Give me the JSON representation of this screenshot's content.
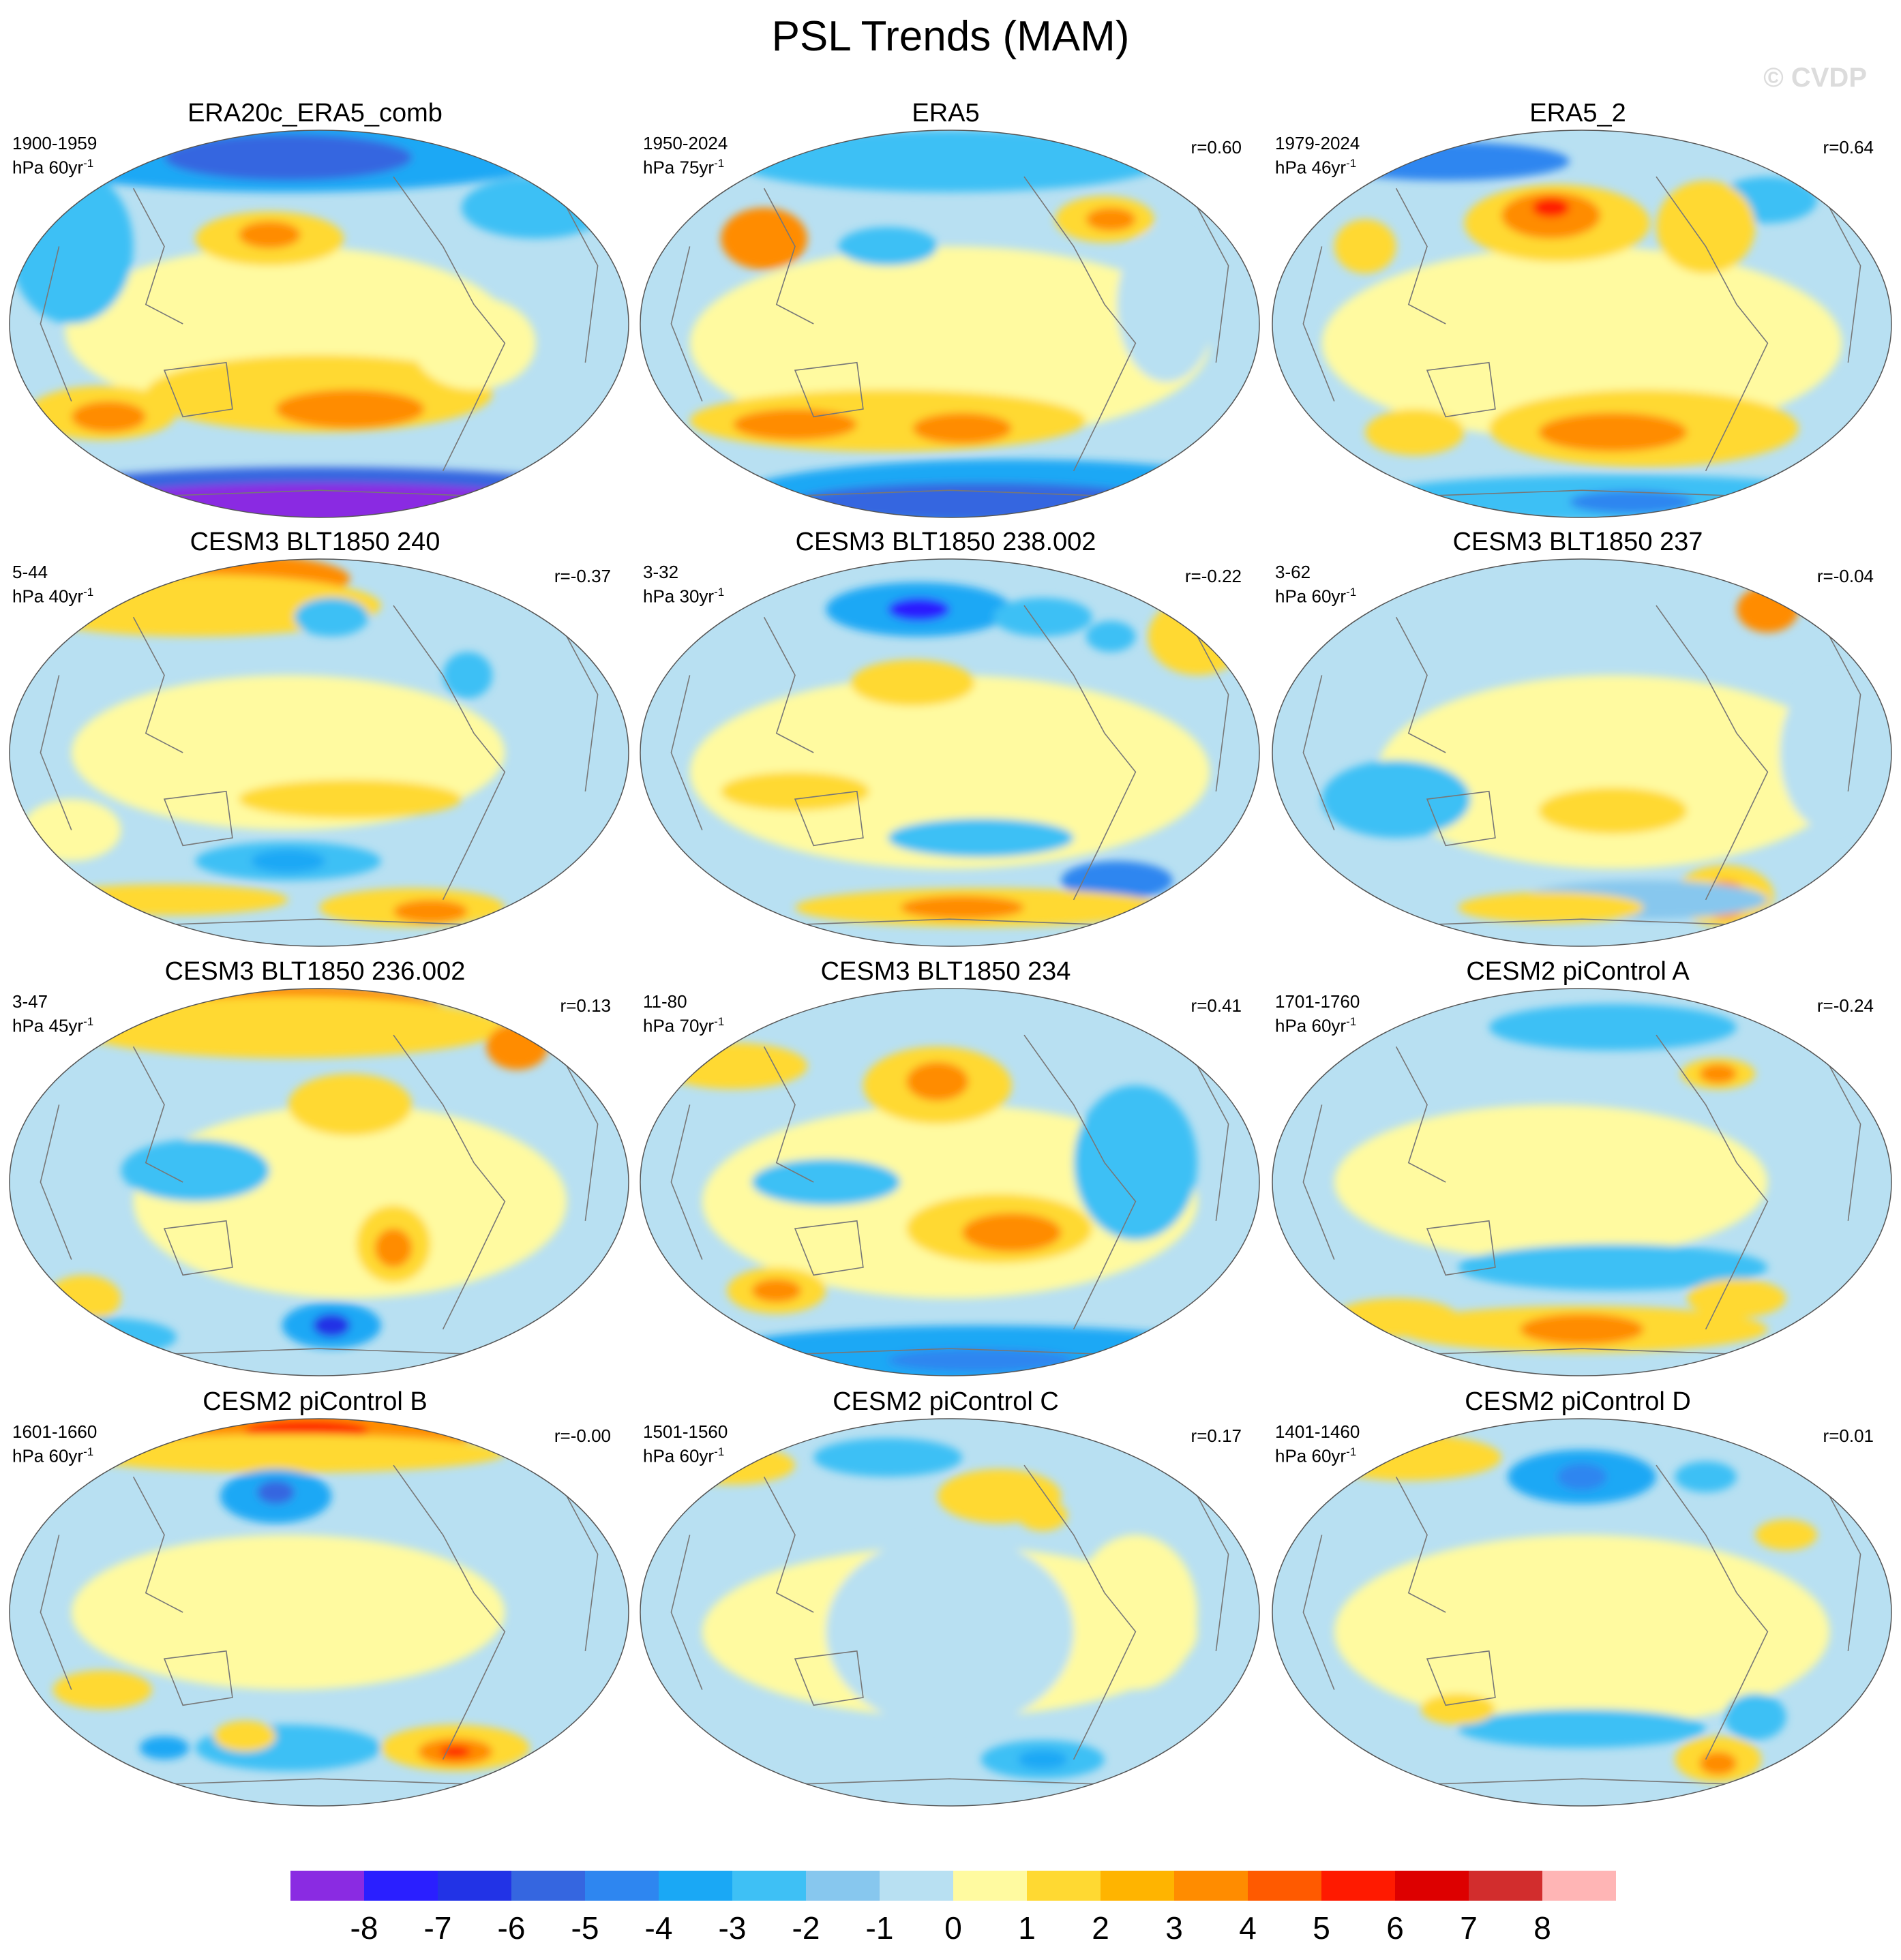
{
  "title": "PSL Trends (MAM)",
  "watermark": "© CVDP",
  "units_base": "hPa",
  "colorbar": {
    "colors": [
      "#8a2be2",
      "#2a1fff",
      "#2233e6",
      "#3566e0",
      "#2e86f0",
      "#1aa8f5",
      "#3ec0f5",
      "#87c7ee",
      "#b8e0f2",
      "#fffaa0",
      "#ffd932",
      "#ffb400",
      "#ff8c00",
      "#ff5a00",
      "#ff1a00",
      "#dd0000",
      "#d22d2d",
      "#ffb5b5"
    ],
    "labels": [
      "-8",
      "-7",
      "-6",
      "-5",
      "-4",
      "-3",
      "-2",
      "-1",
      "0",
      "1",
      "2",
      "3",
      "4",
      "5",
      "6",
      "7",
      "8"
    ]
  },
  "panels": [
    {
      "title": "ERA20c_ERA5_comb",
      "period": "1900-1959",
      "units": "hPa 60yr",
      "corr": ""
    },
    {
      "title": "ERA5",
      "period": "1950-2024",
      "units": "hPa 75yr",
      "corr": "r=0.60"
    },
    {
      "title": "ERA5_2",
      "period": "1979-2024",
      "units": "hPa 46yr",
      "corr": "r=0.64"
    },
    {
      "title": "CESM3 BLT1850 240",
      "period": "5-44",
      "units": "hPa 40yr",
      "corr": "r=-0.37"
    },
    {
      "title": "CESM3 BLT1850 238.002",
      "period": "3-32",
      "units": "hPa 30yr",
      "corr": "r=-0.22"
    },
    {
      "title": "CESM3 BLT1850 237",
      "period": "3-62",
      "units": "hPa 60yr",
      "corr": "r=-0.04"
    },
    {
      "title": "CESM3 BLT1850 236.002",
      "period": "3-47",
      "units": "hPa 45yr",
      "corr": "r=0.13"
    },
    {
      "title": "CESM3 BLT1850 234",
      "period": "11-80",
      "units": "hPa 70yr",
      "corr": "r=0.41"
    },
    {
      "title": "CESM2 piControl A",
      "period": "1701-1760",
      "units": "hPa 60yr",
      "corr": "r=-0.24"
    },
    {
      "title": "CESM2 piControl B",
      "period": "1601-1660",
      "units": "hPa 60yr",
      "corr": "r=-0.00"
    },
    {
      "title": "CESM2 piControl C",
      "period": "1501-1560",
      "units": "hPa 60yr",
      "corr": "r=0.17"
    },
    {
      "title": "CESM2 piControl D",
      "period": "1401-1460",
      "units": "hPa 60yr",
      "corr": "r=0.01"
    }
  ]
}
